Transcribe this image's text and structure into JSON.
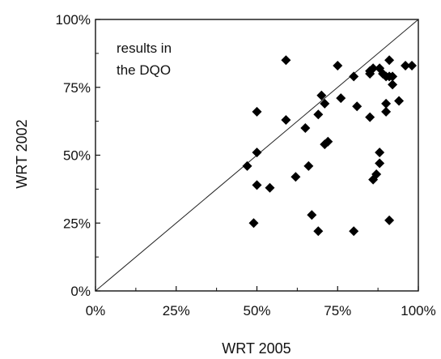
{
  "chart_data": {
    "type": "scatter",
    "title": "",
    "xlabel": "WRT 2005",
    "ylabel": "WRT 2002",
    "xlim": [
      0,
      100
    ],
    "ylim": [
      0,
      100
    ],
    "x_ticks": [
      "0%",
      "25%",
      "50%",
      "75%",
      "100%"
    ],
    "y_ticks": [
      "0%",
      "25%",
      "50%",
      "75%",
      "100%"
    ],
    "grid": false,
    "legend": "none",
    "annotation": [
      "results in",
      "the DQO"
    ],
    "reference_line": {
      "type": "diagonal",
      "from": [
        0,
        0
      ],
      "to": [
        100,
        100
      ]
    },
    "marker_color": "#000000",
    "series": [
      {
        "x": [
          47,
          49,
          50,
          50,
          50,
          54,
          59,
          59,
          62,
          65,
          66,
          67,
          69,
          69,
          70,
          71,
          71,
          72,
          75,
          76,
          80,
          80,
          81,
          85,
          85,
          85,
          86,
          86,
          87,
          88,
          88,
          88,
          89,
          90,
          90,
          90,
          91,
          91,
          91,
          92,
          92,
          94,
          96,
          98
        ],
        "y": [
          46,
          25,
          66,
          51,
          39,
          38,
          85,
          63,
          42,
          60,
          46,
          28,
          65,
          22,
          72,
          69,
          54,
          55,
          83,
          71,
          79,
          22,
          68,
          80,
          81,
          64,
          82,
          41,
          43,
          51,
          47,
          82,
          80,
          79,
          69,
          66,
          79,
          85,
          26,
          76,
          79,
          70,
          83,
          83
        ]
      }
    ]
  }
}
